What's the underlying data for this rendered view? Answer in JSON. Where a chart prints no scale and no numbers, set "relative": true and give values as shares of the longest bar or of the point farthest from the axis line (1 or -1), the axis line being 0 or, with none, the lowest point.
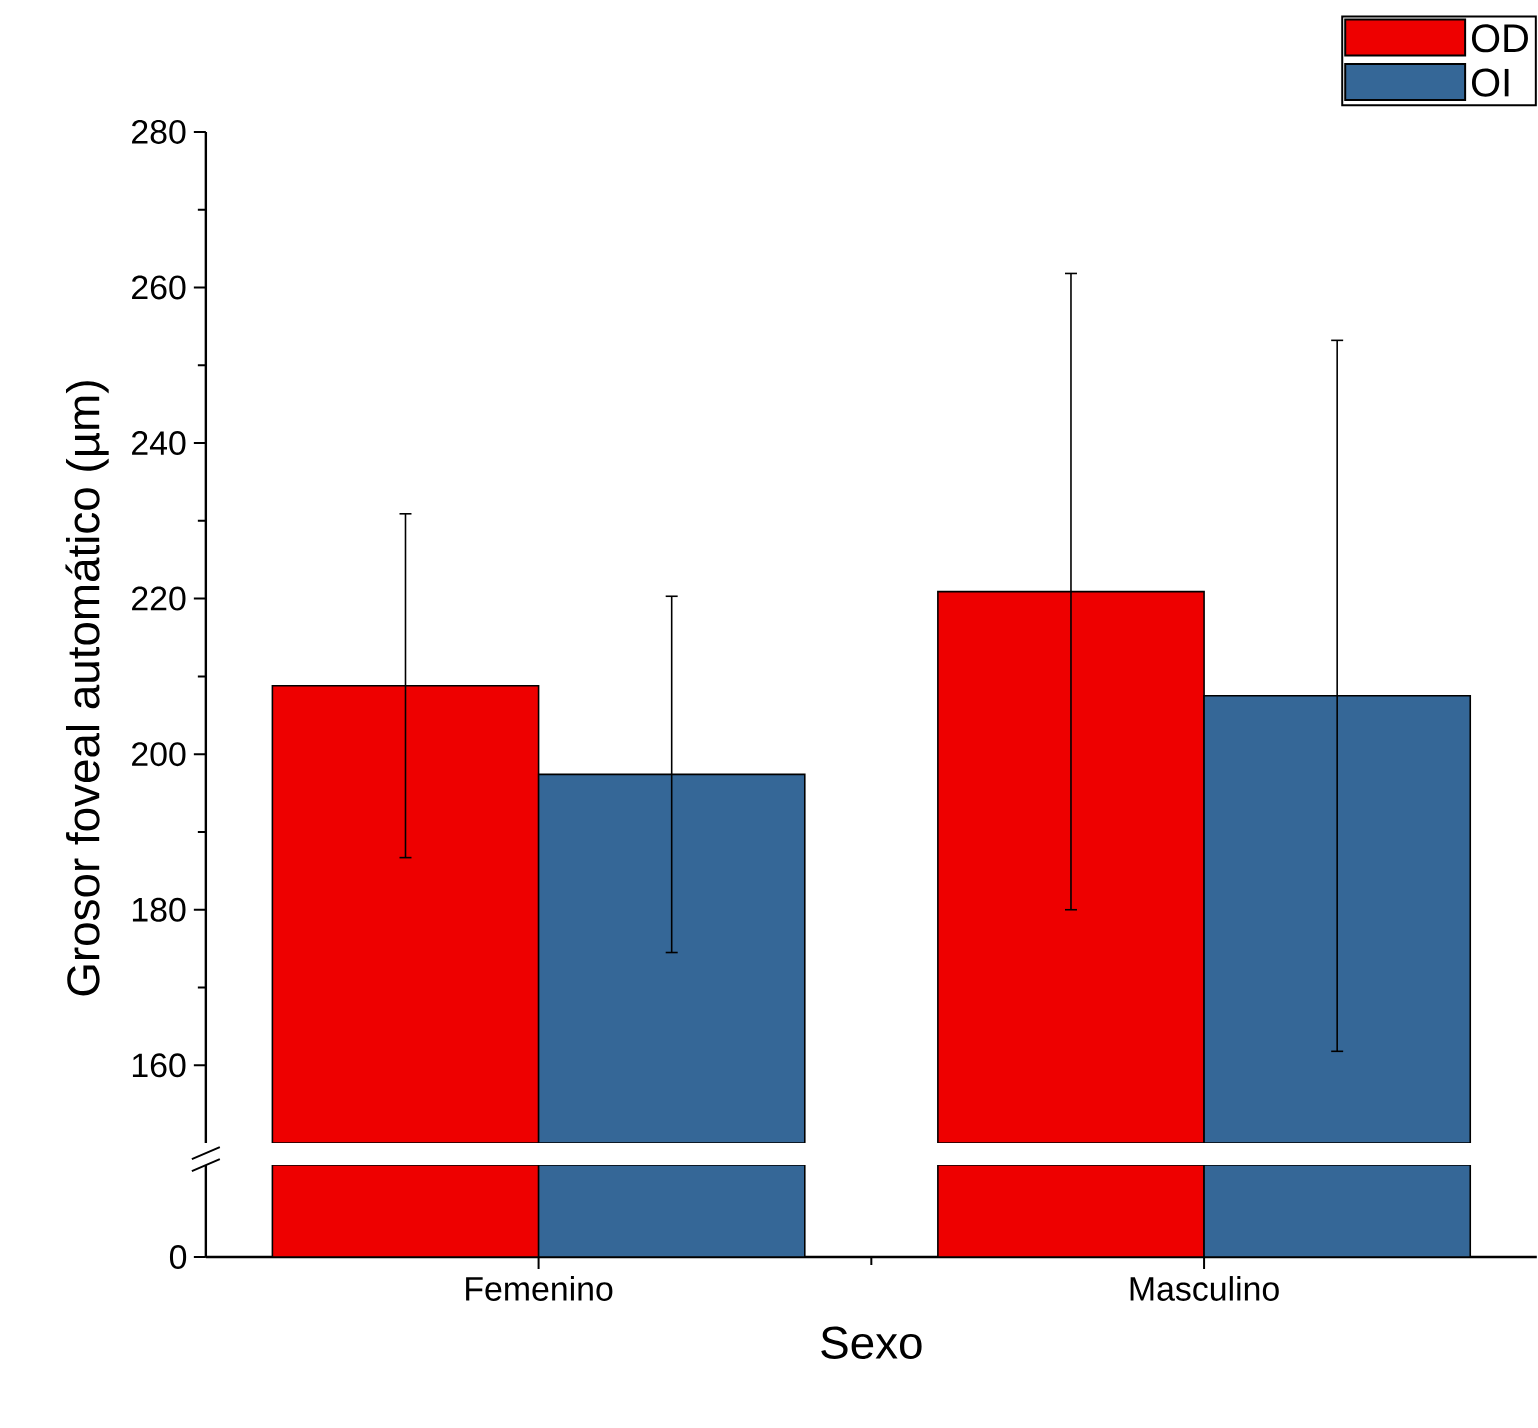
{
  "chart_data": [
    {
      "type": "bar",
      "ylabel": "Grosor foveal automático (µm)",
      "categories": [
        null,
        null
      ],
      "ylim": [
        150,
        280
      ],
      "yticks": [
        160,
        180,
        200,
        220,
        240,
        260,
        280
      ],
      "tick_labels": "y",
      "legend": "top right",
      "series": [
        {
          "name": "OD",
          "color": "#ee0000",
          "values": [
            208.8,
            220.9
          ],
          "errors": [
            22.1,
            40.9
          ]
        },
        {
          "name": "OI",
          "color": "#356797",
          "values": [
            197.4,
            207.5
          ],
          "errors": [
            22.9,
            45.7
          ]
        }
      ]
    },
    {
      "type": "bar",
      "relative": true,
      "xlabel": "Sexo",
      "categories": [
        "Femenino",
        "Masculino"
      ],
      "annotations": [
        "0"
      ],
      "series": [
        {
          "color": "#ee0000",
          "values": [
            1,
            1
          ]
        },
        {
          "color": "#356797",
          "values": [
            1,
            1
          ]
        }
      ]
    }
  ]
}
